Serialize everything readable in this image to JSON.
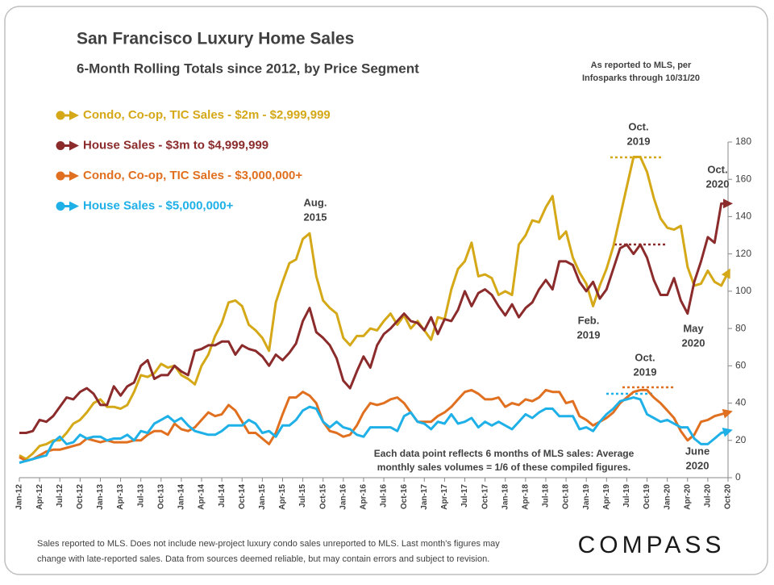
{
  "chart_data": {
    "type": "line",
    "title": "San Francisco Luxury Home Sales",
    "subtitle": "6-Month Rolling Totals since 2012, by Price Segment",
    "source_note": [
      "As reported to MLS, per",
      "Infosparks through 10/31/20"
    ],
    "note": [
      "Each data point reflects 6 months of MLS sales:  Average",
      "monthly sales volumes = 1/6  of these compiled figures."
    ],
    "footer": [
      "Sales reported to MLS. Does not include  new-project luxury condo sales unreported to MLS. Last month's figures may",
      "change with late-reported sales. Data from sources deemed reliable, but may contain errors and subject to revision."
    ],
    "logo": "COMPASS",
    "annotations": [
      [
        "Oct.",
        "2019"
      ],
      [
        "Aug.",
        "2015"
      ],
      [
        "Oct.",
        "2020"
      ],
      [
        "Feb.",
        "2019"
      ],
      [
        "May",
        "2020"
      ],
      [
        "Oct.",
        "2019"
      ],
      [
        "June",
        "2020"
      ]
    ],
    "categories": [
      "Jan-12",
      null,
      null,
      "Apr-12",
      null,
      null,
      "Jul-12",
      null,
      null,
      "Oct-12",
      null,
      null,
      "Jan-13",
      null,
      null,
      "Apr-13",
      null,
      null,
      "Jul-13",
      null,
      null,
      "Oct-13",
      null,
      null,
      "Jan-14",
      null,
      null,
      "Apr-14",
      null,
      null,
      "Jul-14",
      null,
      null,
      "Oct-14",
      null,
      null,
      "Jan-15",
      null,
      null,
      "Apr-15",
      null,
      null,
      "Jul-15",
      null,
      null,
      "Oct-15",
      null,
      null,
      "Jan-16",
      null,
      null,
      "Apr-16",
      null,
      null,
      "Jul-16",
      null,
      null,
      "Oct-16",
      null,
      null,
      "Jan-17",
      null,
      null,
      "Apr-17",
      null,
      null,
      "Jul-17",
      null,
      null,
      "Oct-17",
      null,
      null,
      "Jan-18",
      null,
      null,
      "Apr-18",
      null,
      null,
      "Jul-18",
      null,
      null,
      "Oct-18",
      null,
      null,
      "Jan-19",
      null,
      null,
      "Apr-19",
      null,
      null,
      "Jul-19",
      null,
      null,
      "Oct-19",
      null,
      null,
      "Jan-20",
      null,
      null,
      "Apr-20",
      null,
      null,
      "Jul-20",
      null,
      null,
      "Oct-20"
    ],
    "series": [
      {
        "name": "Condo, Co-op, TIC Sales - $2m - $2,999,999",
        "color": "#d4a817",
        "values": [
          12,
          10,
          13,
          17,
          18,
          20,
          20,
          24,
          29,
          31,
          35,
          40,
          42,
          38,
          38,
          37,
          39,
          46,
          55,
          54,
          56,
          61,
          59,
          60,
          55,
          53,
          50,
          60,
          66,
          76,
          83,
          94,
          95,
          92,
          82,
          79,
          75,
          68,
          94,
          105,
          115,
          117,
          128,
          131,
          108,
          95,
          91,
          88,
          75,
          71,
          76,
          76,
          80,
          79,
          84,
          88,
          82,
          87,
          80,
          84,
          79,
          74,
          86,
          85,
          101,
          112,
          116,
          126,
          108,
          109,
          107,
          98,
          100,
          98,
          125,
          130,
          138,
          137,
          145,
          151,
          128,
          132,
          118,
          110,
          104,
          92,
          103,
          112,
          124,
          140,
          156,
          172,
          172,
          164,
          150,
          139,
          134,
          133,
          135,
          113,
          103,
          104,
          111,
          105,
          103,
          110
        ]
      },
      {
        "name": "House Sales - $3m to $4,999,999",
        "color": "#8b2b2b",
        "values": [
          24,
          24,
          25,
          31,
          30,
          33,
          38,
          43,
          42,
          46,
          48,
          45,
          39,
          39,
          49,
          44,
          49,
          51,
          60,
          63,
          53,
          55,
          55,
          60,
          57,
          55,
          68,
          69,
          71,
          71,
          73,
          73,
          66,
          71,
          69,
          68,
          65,
          60,
          66,
          63,
          67,
          72,
          84,
          91,
          78,
          75,
          71,
          64,
          52,
          48,
          57,
          65,
          59,
          71,
          77,
          80,
          84,
          88,
          84,
          83,
          79,
          86,
          77,
          85,
          84,
          90,
          100,
          92,
          99,
          101,
          98,
          92,
          87,
          93,
          86,
          91,
          94,
          101,
          106,
          101,
          116,
          116,
          114,
          105,
          100,
          105,
          96,
          101,
          112,
          123,
          125,
          120,
          125,
          118,
          106,
          98,
          98,
          107,
          95,
          88,
          105,
          116,
          129,
          126,
          147,
          147
        ]
      },
      {
        "name": "Condo, Co-op, TIC Sales - $3,000,000+",
        "color": "#e07020",
        "values": [
          11,
          9,
          10,
          12,
          14,
          15,
          15,
          16,
          17,
          18,
          21,
          20,
          19,
          20,
          19,
          19,
          19,
          20,
          20,
          23,
          25,
          25,
          23,
          29,
          26,
          25,
          27,
          31,
          35,
          33,
          34,
          39,
          36,
          30,
          24,
          24,
          21,
          18,
          24,
          34,
          43,
          43,
          46,
          44,
          40,
          30,
          25,
          24,
          22,
          23,
          28,
          35,
          40,
          39,
          40,
          42,
          43,
          40,
          35,
          30,
          30,
          30,
          33,
          35,
          38,
          42,
          46,
          47,
          45,
          42,
          42,
          43,
          38,
          40,
          39,
          42,
          41,
          43,
          47,
          46,
          46,
          40,
          41,
          33,
          31,
          28,
          30,
          32,
          35,
          40,
          43,
          46,
          47,
          47,
          43,
          40,
          36,
          32,
          25,
          20,
          23,
          30,
          31,
          33,
          34,
          35
        ]
      },
      {
        "name": "House Sales - $5,000,000+",
        "color": "#1fb0e8",
        "values": [
          8,
          9,
          10,
          11,
          12,
          19,
          22,
          18,
          19,
          23,
          21,
          22,
          22,
          20,
          21,
          21,
          23,
          20,
          25,
          24,
          29,
          31,
          33,
          30,
          32,
          28,
          25,
          24,
          23,
          23,
          25,
          28,
          28,
          28,
          31,
          29,
          24,
          25,
          22,
          28,
          28,
          31,
          36,
          38,
          37,
          30,
          27,
          30,
          27,
          26,
          23,
          22,
          27,
          27,
          27,
          27,
          25,
          33,
          35,
          30,
          29,
          26,
          30,
          29,
          34,
          29,
          30,
          32,
          27,
          30,
          28,
          30,
          28,
          26,
          30,
          34,
          32,
          35,
          37,
          37,
          33,
          33,
          33,
          26,
          27,
          25,
          30,
          34,
          37,
          41,
          42,
          43,
          42,
          34,
          32,
          30,
          31,
          29,
          27,
          27,
          21,
          18,
          18,
          21,
          24,
          25
        ]
      }
    ],
    "ylim": [
      0,
      180
    ],
    "yticks": [
      0,
      20,
      40,
      60,
      80,
      100,
      120,
      140,
      160,
      180
    ],
    "grid": false
  }
}
